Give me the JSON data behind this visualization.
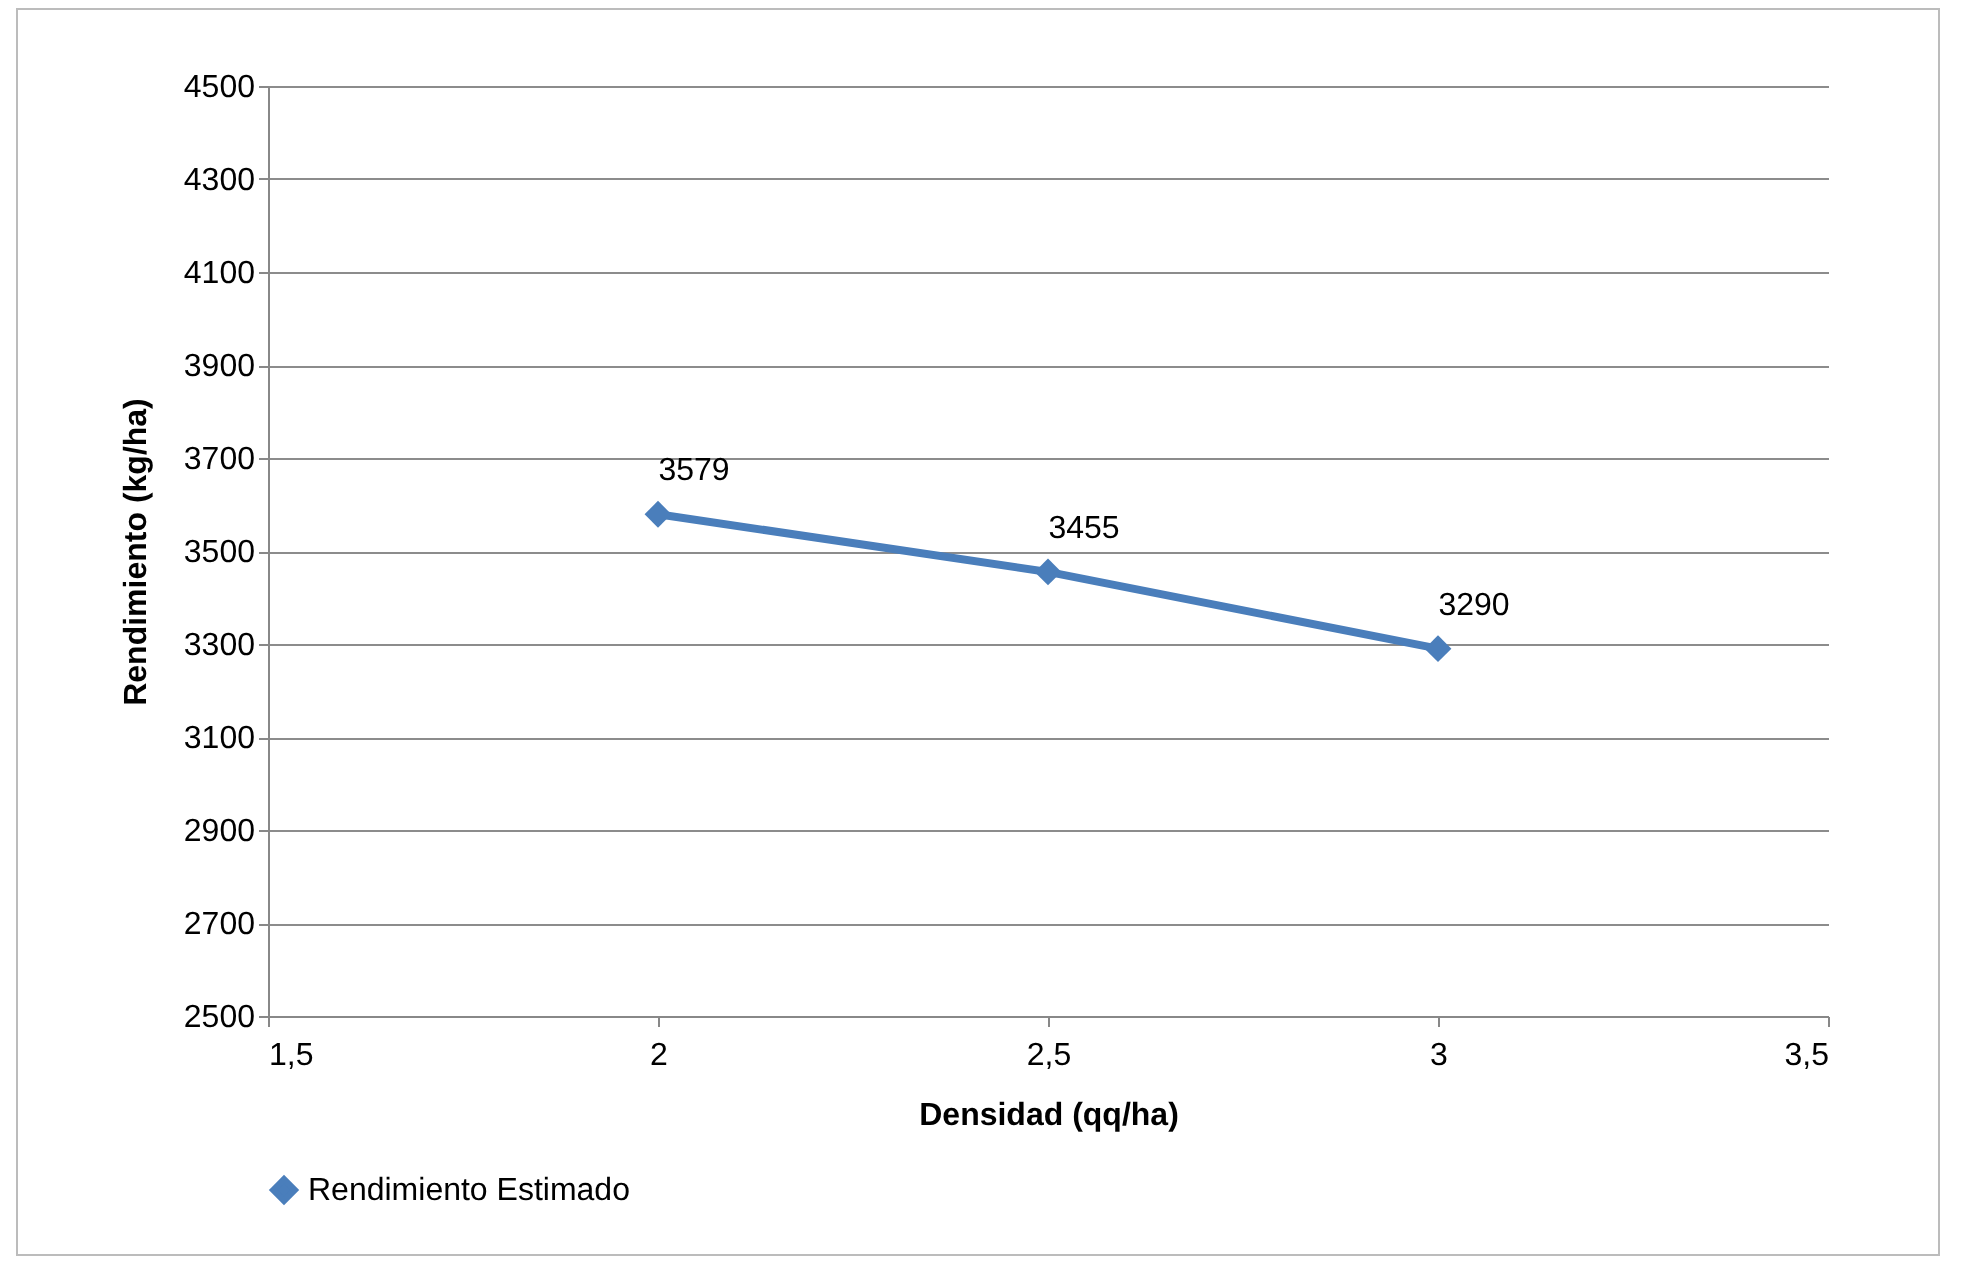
{
  "chart_data": {
    "type": "line",
    "xlabel": "Densidad (qq/ha)",
    "ylabel": "Rendimiento (kg/ha)",
    "x": [
      2,
      2.5,
      3
    ],
    "series": [
      {
        "name": "Rendimiento Estimado",
        "color": "#4a7ebb",
        "values": [
          3579,
          3455,
          3290
        ]
      }
    ],
    "xlim": [
      1.5,
      3.5
    ],
    "xticks": [
      {
        "value": 1.5,
        "label": "1,5"
      },
      2,
      {
        "value": 2.5,
        "label": "2,5"
      },
      3,
      {
        "value": 3.5,
        "label": "3,5"
      }
    ],
    "ylim": [
      2500,
      4500
    ],
    "yticks": [
      2500,
      2700,
      2900,
      3100,
      3300,
      3500,
      3700,
      3900,
      4100,
      4300,
      4500
    ],
    "grid": "y",
    "legend": "bottom",
    "marker": "diamond",
    "line_style": "solid",
    "data_labels": true
  }
}
